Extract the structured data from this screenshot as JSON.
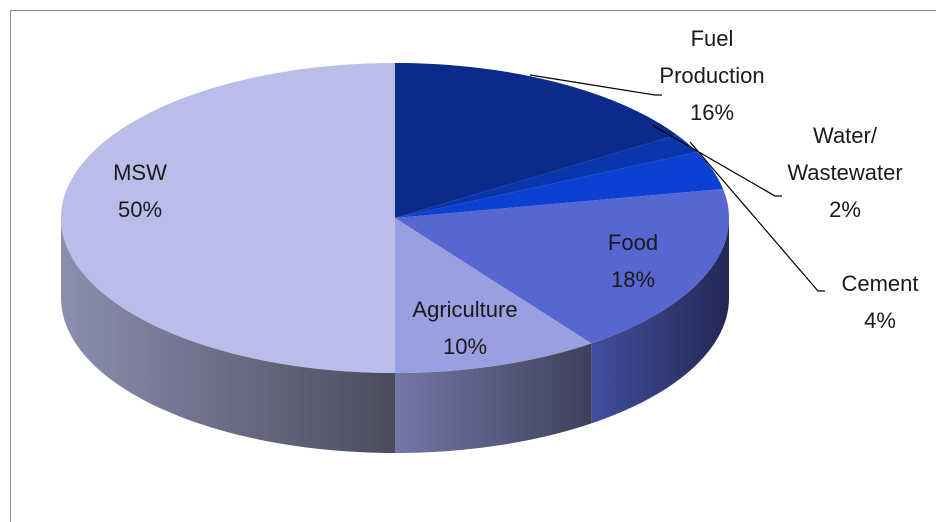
{
  "chart_data": {
    "type": "pie",
    "categories": [
      "Fuel Production",
      "Water/ Wastewater",
      "Cement",
      "Food",
      "Agriculture",
      "MSW"
    ],
    "values": [
      16,
      2,
      4,
      18,
      10,
      50
    ],
    "value_labels": [
      "16%",
      "2%",
      "4%",
      "18%",
      "10%",
      "50%"
    ],
    "colors": [
      "#0b2a8c",
      "#0a36ad",
      "#0b40d2",
      "#5866d2",
      "#9a9fe0",
      "#babde9"
    ]
  }
}
